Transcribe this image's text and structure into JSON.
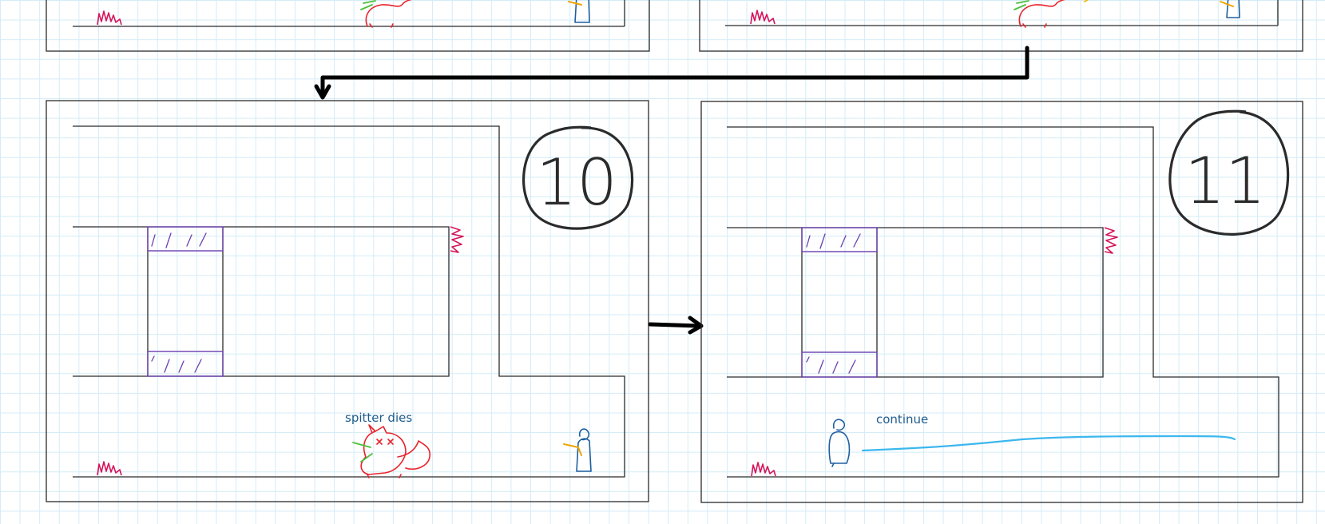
{
  "panels": {
    "panel_10": {
      "number": "10",
      "annotation": "spitter dies"
    },
    "panel_11": {
      "number": "11",
      "annotation": "continue"
    }
  },
  "colors": {
    "grid": "#d3ecf7",
    "wall": "#2b2b2b",
    "gate": "#6a3fb0",
    "grass": "#d4145a",
    "spitter": "#e8232c",
    "player": "#1f5fa0",
    "walk_path": "#3bb7ef"
  },
  "icons": [
    "grass-tuft-icon",
    "spitter-creature-icon",
    "player-figure-icon",
    "flow-arrow-icon"
  ]
}
